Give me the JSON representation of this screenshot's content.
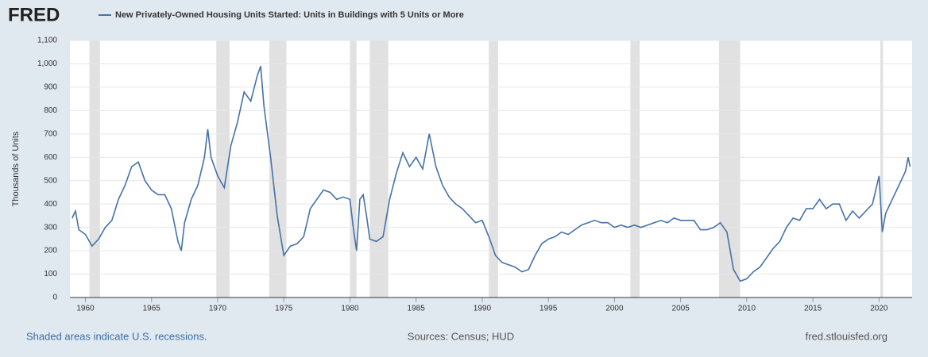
{
  "brand": "FRED",
  "chart_data": {
    "type": "line",
    "title": "New Privately-Owned Housing Units Started: Units in Buildings with 5 Units or More",
    "ylabel": "Thousands of Units",
    "note": "Shaded areas indicate U.S. recessions.",
    "source": "Sources: Census; HUD",
    "site": "fred.stlouisfed.org",
    "xlim": [
      1958.83,
      2022.5
    ],
    "ylim": [
      0,
      1100
    ],
    "xticks": [
      1960,
      1965,
      1970,
      1975,
      1980,
      1985,
      1990,
      1995,
      2000,
      2005,
      2010,
      2015,
      2020
    ],
    "yticks": [
      0,
      100,
      200,
      300,
      400,
      500,
      600,
      700,
      800,
      900,
      {
        "value": 1000,
        "label": "1,000"
      },
      {
        "value": 1100,
        "label": "1,100"
      }
    ],
    "grid": true,
    "recessions": [
      [
        1960.3,
        1961.1
      ],
      [
        1969.9,
        1970.9
      ],
      [
        1973.9,
        1975.2
      ],
      [
        1980.0,
        1980.5
      ],
      [
        1981.5,
        1982.9
      ],
      [
        1990.5,
        1991.2
      ],
      [
        2001.2,
        2001.9
      ],
      [
        2007.9,
        2009.5
      ],
      [
        2020.1,
        2020.3
      ]
    ],
    "recession_color": "#e1e1e1",
    "x": [
      1959.0,
      1959.25,
      1959.5,
      1960.0,
      1960.5,
      1961.0,
      1961.5,
      1962.0,
      1962.5,
      1963.0,
      1963.5,
      1964.0,
      1964.5,
      1965.0,
      1965.5,
      1966.0,
      1966.5,
      1967.0,
      1967.25,
      1967.5,
      1968.0,
      1968.5,
      1969.0,
      1969.25,
      1969.5,
      1970.0,
      1970.5,
      1971.0,
      1971.5,
      1972.0,
      1972.5,
      1973.0,
      1973.25,
      1973.5,
      1974.0,
      1974.5,
      1975.0,
      1975.5,
      1976.0,
      1976.5,
      1977.0,
      1977.5,
      1978.0,
      1978.5,
      1979.0,
      1979.5,
      1980.0,
      1980.25,
      1980.5,
      1980.75,
      1981.0,
      1981.25,
      1981.5,
      1982.0,
      1982.5,
      1983.0,
      1983.5,
      1984.0,
      1984.5,
      1985.0,
      1985.5,
      1986.0,
      1986.5,
      1987.0,
      1987.5,
      1988.0,
      1988.5,
      1989.0,
      1989.5,
      1990.0,
      1990.5,
      1991.0,
      1991.5,
      1992.0,
      1992.5,
      1993.0,
      1993.5,
      1994.0,
      1994.5,
      1995.0,
      1995.5,
      1996.0,
      1996.5,
      1997.0,
      1997.5,
      1998.0,
      1998.5,
      1999.0,
      1999.5,
      2000.0,
      2000.5,
      2001.0,
      2001.5,
      2002.0,
      2002.5,
      2003.0,
      2003.5,
      2004.0,
      2004.5,
      2005.0,
      2005.5,
      2006.0,
      2006.5,
      2007.0,
      2007.5,
      2008.0,
      2008.5,
      2009.0,
      2009.5,
      2010.0,
      2010.5,
      2011.0,
      2011.5,
      2012.0,
      2012.5,
      2013.0,
      2013.5,
      2014.0,
      2014.5,
      2015.0,
      2015.5,
      2016.0,
      2016.5,
      2017.0,
      2017.5,
      2018.0,
      2018.5,
      2019.0,
      2019.5,
      2020.0,
      2020.25,
      2020.5,
      2021.0,
      2021.5,
      2022.0,
      2022.2,
      2022.35
    ],
    "series": [
      {
        "name": "New Privately-Owned Housing Units Started: Units in Buildings with 5 Units or More",
        "color": "#4572a7",
        "values": [
          340,
          370,
          290,
          270,
          220,
          250,
          300,
          330,
          420,
          480,
          560,
          580,
          500,
          460,
          440,
          440,
          380,
          240,
          200,
          320,
          420,
          480,
          600,
          720,
          600,
          520,
          470,
          650,
          750,
          880,
          840,
          950,
          990,
          820,
          600,
          350,
          180,
          220,
          230,
          260,
          380,
          420,
          460,
          450,
          420,
          430,
          420,
          300,
          200,
          420,
          440,
          350,
          250,
          240,
          260,
          420,
          530,
          620,
          560,
          600,
          550,
          700,
          560,
          480,
          430,
          400,
          380,
          350,
          320,
          330,
          260,
          180,
          150,
          140,
          130,
          110,
          120,
          180,
          230,
          250,
          260,
          280,
          270,
          290,
          310,
          320,
          330,
          320,
          320,
          300,
          310,
          300,
          310,
          300,
          310,
          320,
          330,
          320,
          340,
          330,
          330,
          330,
          290,
          290,
          300,
          320,
          280,
          120,
          70,
          80,
          110,
          130,
          170,
          210,
          240,
          300,
          340,
          330,
          380,
          380,
          420,
          380,
          400,
          400,
          330,
          370,
          340,
          370,
          400,
          520,
          280,
          360,
          420,
          480,
          540,
          600,
          560
        ]
      }
    ]
  }
}
